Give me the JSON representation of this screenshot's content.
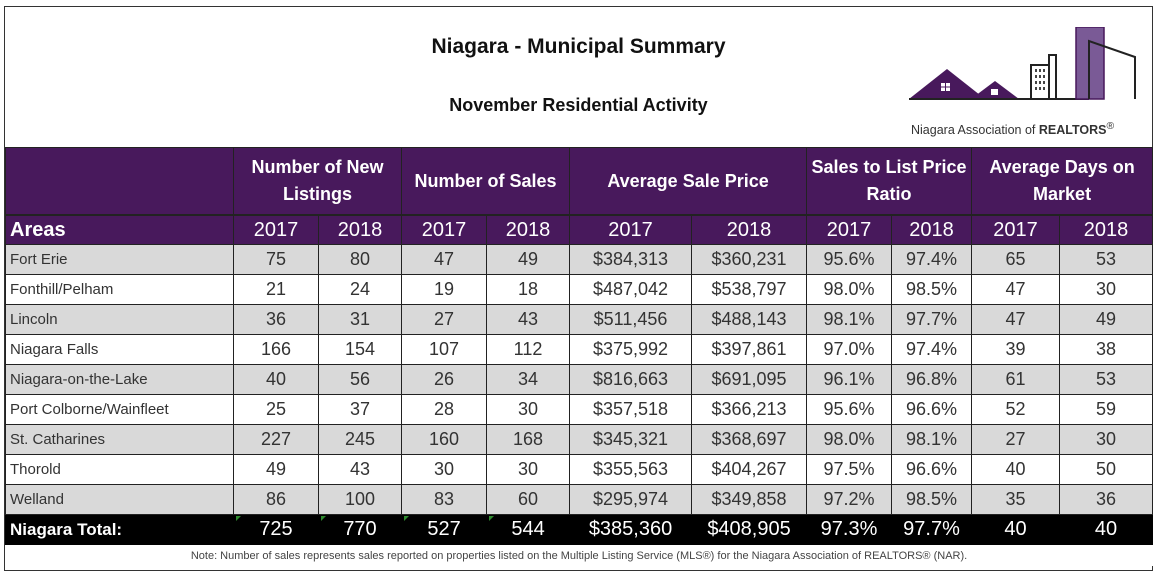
{
  "header": {
    "title": "Niagara - Municipal Summary",
    "subtitle": "November Residential Activity",
    "logo": {
      "icon": "houses-and-buildings-logo-icon",
      "text_prefix": "Niagara Association of ",
      "text_bold": "REALTORS",
      "text_suffix": "®"
    }
  },
  "colors": {
    "header_bg": "#48195c",
    "row_shade": "#d9d9d9",
    "total_bg": "#000000"
  },
  "table": {
    "groups": [
      "Number of New Listings",
      "Number of Sales",
      "Average Sale Price",
      "Sales to List Price Ratio",
      "Average Days on Market"
    ],
    "areas_label": "Areas",
    "years": [
      "2017",
      "2018"
    ],
    "rows": [
      {
        "area": "Fort Erie",
        "values": [
          "75",
          "80",
          "47",
          "49",
          "$384,313",
          "$360,231",
          "95.6%",
          "97.4%",
          "65",
          "53"
        ]
      },
      {
        "area": "Fonthill/Pelham",
        "values": [
          "21",
          "24",
          "19",
          "18",
          "$487,042",
          "$538,797",
          "98.0%",
          "98.5%",
          "47",
          "30"
        ]
      },
      {
        "area": "Lincoln",
        "values": [
          "36",
          "31",
          "27",
          "43",
          "$511,456",
          "$488,143",
          "98.1%",
          "97.7%",
          "47",
          "49"
        ]
      },
      {
        "area": "Niagara Falls",
        "values": [
          "166",
          "154",
          "107",
          "112",
          "$375,992",
          "$397,861",
          "97.0%",
          "97.4%",
          "39",
          "38"
        ]
      },
      {
        "area": "Niagara-on-the-Lake",
        "values": [
          "40",
          "56",
          "26",
          "34",
          "$816,663",
          "$691,095",
          "96.1%",
          "96.8%",
          "61",
          "53"
        ]
      },
      {
        "area": "Port Colborne/Wainfleet",
        "values": [
          "25",
          "37",
          "28",
          "30",
          "$357,518",
          "$366,213",
          "95.6%",
          "96.6%",
          "52",
          "59"
        ]
      },
      {
        "area": "St. Catharines",
        "values": [
          "227",
          "245",
          "160",
          "168",
          "$345,321",
          "$368,697",
          "98.0%",
          "98.1%",
          "27",
          "30"
        ]
      },
      {
        "area": "Thorold",
        "values": [
          "49",
          "43",
          "30",
          "30",
          "$355,563",
          "$404,267",
          "97.5%",
          "96.6%",
          "40",
          "50"
        ]
      },
      {
        "area": "Welland",
        "values": [
          "86",
          "100",
          "83",
          "60",
          "$295,974",
          "$349,858",
          "97.2%",
          "98.5%",
          "35",
          "36"
        ]
      }
    ],
    "total": {
      "label": "Niagara Total:",
      "values": [
        "725",
        "770",
        "527",
        "544",
        "$385,360",
        "$408,905",
        "97.3%",
        "97.7%",
        "40",
        "40"
      ]
    },
    "note": "Note: Number of sales represents sales reported on properties listed on the Multiple Listing Service (MLS®) for the Niagara Association of REALTORS® (NAR)."
  }
}
